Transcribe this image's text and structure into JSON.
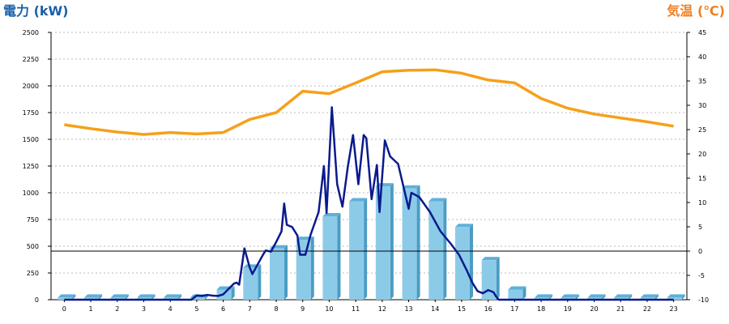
{
  "chart_data": {
    "type": "bar",
    "title_left": "電力 (kW)",
    "title_right": "気温 (℃)",
    "x": [
      "0",
      "1",
      "2",
      "3",
      "4",
      "5",
      "6",
      "7",
      "8",
      "9",
      "10",
      "11",
      "12",
      "13",
      "14",
      "15",
      "16",
      "17",
      "18",
      "19",
      "20",
      "21",
      "22",
      "23"
    ],
    "yleft": {
      "ylim": [
        0,
        2500
      ],
      "ticks": [
        0,
        250,
        500,
        750,
        1000,
        1250,
        1500,
        1750,
        2000,
        2250,
        2500
      ]
    },
    "yright": {
      "ylim": [
        -10,
        45
      ],
      "ticks": [
        -10,
        -5,
        0,
        5,
        10,
        15,
        20,
        25,
        30,
        35,
        40,
        45
      ]
    },
    "grid": true,
    "series": [
      {
        "type": "bar",
        "axis": "left",
        "values": [
          20,
          20,
          20,
          20,
          20,
          20,
          95,
          300,
          480,
          560,
          780,
          920,
          1060,
          1040,
          920,
          680,
          370,
          95,
          20,
          20,
          20,
          20,
          20,
          20
        ]
      },
      {
        "type": "line",
        "axis": "left",
        "points": [
          [
            0,
            0
          ],
          [
            1,
            0
          ],
          [
            2,
            0
          ],
          [
            3,
            0
          ],
          [
            4,
            0
          ],
          [
            4.8,
            0
          ],
          [
            5,
            40
          ],
          [
            5.2,
            35
          ],
          [
            5.4,
            45
          ],
          [
            5.6,
            38
          ],
          [
            5.8,
            35
          ],
          [
            6,
            50
          ],
          [
            6.2,
            100
          ],
          [
            6.4,
            150
          ],
          [
            6.5,
            160
          ],
          [
            6.6,
            140
          ],
          [
            6.8,
            480
          ],
          [
            7,
            300
          ],
          [
            7.1,
            240
          ],
          [
            7.3,
            330
          ],
          [
            7.5,
            420
          ],
          [
            7.6,
            460
          ],
          [
            7.8,
            450
          ],
          [
            8,
            540
          ],
          [
            8.2,
            640
          ],
          [
            8.3,
            900
          ],
          [
            8.4,
            700
          ],
          [
            8.6,
            680
          ],
          [
            8.8,
            600
          ],
          [
            8.9,
            420
          ],
          [
            9.1,
            420
          ],
          [
            9.3,
            610
          ],
          [
            9.6,
            820
          ],
          [
            9.8,
            1250
          ],
          [
            9.9,
            810
          ],
          [
            10.1,
            1800
          ],
          [
            10.3,
            1080
          ],
          [
            10.5,
            870
          ],
          [
            10.7,
            1240
          ],
          [
            10.9,
            1540
          ],
          [
            11.1,
            1080
          ],
          [
            11.3,
            1540
          ],
          [
            11.4,
            1510
          ],
          [
            11.6,
            940
          ],
          [
            11.8,
            1260
          ],
          [
            11.9,
            820
          ],
          [
            12.1,
            1490
          ],
          [
            12.3,
            1340
          ],
          [
            12.6,
            1270
          ],
          [
            12.8,
            1060
          ],
          [
            13,
            850
          ],
          [
            13.1,
            1000
          ],
          [
            13.4,
            960
          ],
          [
            13.8,
            820
          ],
          [
            14.2,
            640
          ],
          [
            14.6,
            520
          ],
          [
            14.9,
            420
          ],
          [
            15.2,
            270
          ],
          [
            15.4,
            160
          ],
          [
            15.6,
            80
          ],
          [
            15.8,
            60
          ],
          [
            16,
            90
          ],
          [
            16.2,
            70
          ],
          [
            16.3,
            30
          ],
          [
            16.4,
            0
          ],
          [
            17,
            0
          ],
          [
            18,
            0
          ],
          [
            19,
            0
          ],
          [
            20,
            0
          ],
          [
            21,
            0
          ],
          [
            22,
            0
          ],
          [
            23,
            0
          ]
        ]
      },
      {
        "type": "line",
        "axis": "right",
        "values": [
          26,
          25.2,
          24.5,
          24,
          24.4,
          24.1,
          24.4,
          27.1,
          28.5,
          32.9,
          32.4,
          34.6,
          36.9,
          37.2,
          37.3,
          36.6,
          35.2,
          34.6,
          31.4,
          29.4,
          28.2,
          27.4,
          26.6,
          25.7
        ]
      }
    ]
  }
}
